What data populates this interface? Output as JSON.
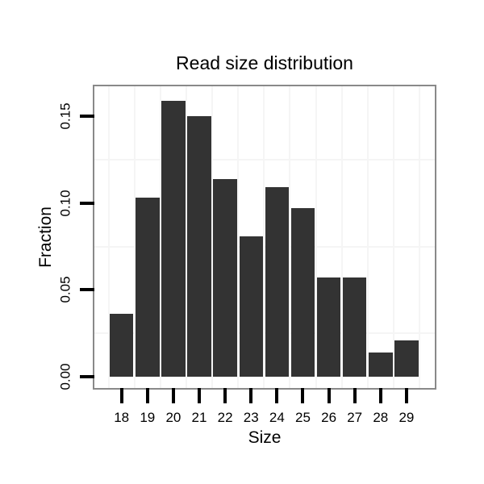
{
  "chart_data": {
    "type": "bar",
    "title": "Read size distribution",
    "xlabel": "Size",
    "ylabel": "Fraction",
    "categories": [
      "18",
      "19",
      "20",
      "21",
      "22",
      "23",
      "24",
      "25",
      "26",
      "27",
      "28",
      "29"
    ],
    "values": [
      0.036,
      0.103,
      0.159,
      0.15,
      0.114,
      0.081,
      0.109,
      0.097,
      0.057,
      0.057,
      0.014,
      0.021
    ],
    "y_ticks": [
      "0.00",
      "0.05",
      "0.10",
      "0.15"
    ],
    "y_tick_values": [
      0,
      0.05,
      0.1,
      0.15
    ],
    "ylim": [
      0,
      0.167
    ],
    "y_minor_gridlines": [
      0.025,
      0.075,
      0.125
    ],
    "x_gridlines": "category-boundaries",
    "grid": "faint minor gridlines only, on white panel",
    "legend": "none",
    "style": {
      "bar_color": "#333333",
      "gridline_color": "#f5f5f5",
      "panel_border_color": "#898989",
      "tick_color": "#000000",
      "text_color": "#000000",
      "background": "#ffffff"
    }
  }
}
